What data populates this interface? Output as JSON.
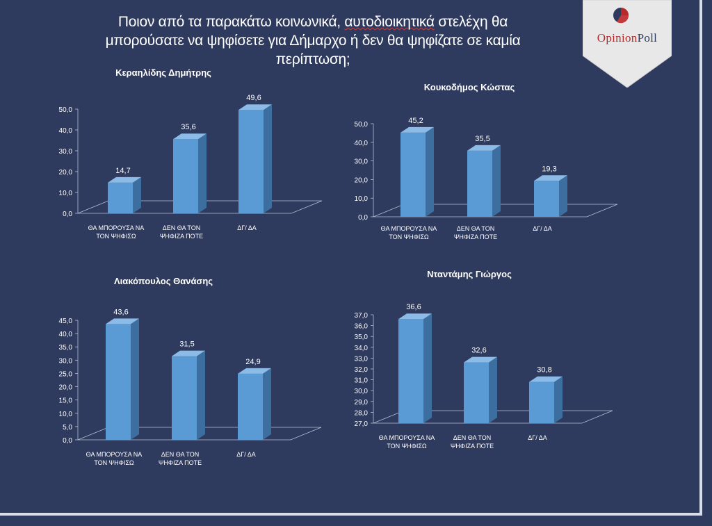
{
  "header": {
    "title_line1": "Ποιον από τα παρακάτω κοινωνικά, ",
    "title_underlined": "αυτοδιοικητικά",
    "title_line1_end": " στελέχη θα",
    "title_line2": "μπορούσατε να ψηφίσετε για Δήμαρχο ή δεν θα ψηφίζατε σε καμία",
    "title_line3": "περίπτωση;"
  },
  "logo": {
    "brand_left": "Opinion",
    "brand_right": "Poll",
    "colors": {
      "red": "#b82a2a",
      "navy": "#2f3b5e",
      "panel": "#e8e8e8"
    }
  },
  "colors": {
    "background": "#2f3b5e",
    "bar_front": "#5b9bd5",
    "bar_side": "#3c6f9f",
    "bar_top": "#8bbbe6"
  },
  "chart_data": [
    {
      "type": "bar",
      "title": "Κεραηλίδης Δημήτρης",
      "categories": [
        [
          "ΘΑ ΜΠΟΡΟΥΣΑ ΝΑ",
          "ΤΟΝ ΨΗΦΙΣΩ"
        ],
        [
          "ΔΕΝ ΘΑ ΤΟΝ",
          "ΨΗΦΙΖΑ ΠΟΤΕ"
        ],
        [
          "ΔΓ/ ΔΑ"
        ]
      ],
      "values": [
        14.7,
        35.6,
        49.6
      ],
      "value_labels": [
        "14,7",
        "35,6",
        "49,6"
      ],
      "ylim": [
        0,
        50
      ],
      "yticks": [
        "0,0",
        "10,0",
        "20,0",
        "30,0",
        "40,0",
        "50,0"
      ],
      "grid": false,
      "legend": "none"
    },
    {
      "type": "bar",
      "title": "Κουκοδήμος Κώστας",
      "categories": [
        [
          "ΘΑ ΜΠΟΡΟΥΣΑ ΝΑ",
          "ΤΟΝ ΨΗΦΙΣΩ"
        ],
        [
          "ΔΕΝ ΘΑ ΤΟΝ",
          "ΨΗΦΙΖΑ ΠΟΤΕ"
        ],
        [
          "ΔΓ/ ΔΑ"
        ]
      ],
      "values": [
        45.2,
        35.5,
        19.3
      ],
      "value_labels": [
        "45,2",
        "35,5",
        "19,3"
      ],
      "ylim": [
        0,
        50
      ],
      "yticks": [
        "0,0",
        "10,0",
        "20,0",
        "30,0",
        "40,0",
        "50,0"
      ],
      "grid": false,
      "legend": "none"
    },
    {
      "type": "bar",
      "title": "Λιακόπουλος Θανάσης",
      "categories": [
        [
          "ΘΑ ΜΠΟΡΟΥΣΑ ΝΑ",
          "ΤΟΝ ΨΗΦΙΣΩ"
        ],
        [
          "ΔΕΝ ΘΑ ΤΟΝ",
          "ΨΗΦΙΖΑ ΠΟΤΕ"
        ],
        [
          "ΔΓ/ ΔΑ"
        ]
      ],
      "values": [
        43.6,
        31.5,
        24.9
      ],
      "value_labels": [
        "43,6",
        "31,5",
        "24,9"
      ],
      "ylim": [
        0,
        45
      ],
      "yticks": [
        "0,0",
        "5,0",
        "10,0",
        "15,0",
        "20,0",
        "25,0",
        "30,0",
        "35,0",
        "40,0",
        "45,0"
      ],
      "grid": false,
      "legend": "none"
    },
    {
      "type": "bar",
      "title": "Νταντάμης Γιώργος",
      "categories": [
        [
          "ΘΑ ΜΠΟΡΟΥΣΑ ΝΑ",
          "ΤΟΝ ΨΗΦΙΣΩ"
        ],
        [
          "ΔΕΝ ΘΑ ΤΟΝ",
          "ΨΗΦΙΖΑ ΠΟΤΕ"
        ],
        [
          "ΔΓ/ ΔΑ"
        ]
      ],
      "values": [
        36.6,
        32.6,
        30.8
      ],
      "value_labels": [
        "36,6",
        "32,6",
        "30,8"
      ],
      "ylim": [
        27,
        37
      ],
      "yticks": [
        "27,0",
        "28,0",
        "29,0",
        "30,0",
        "31,0",
        "32,0",
        "33,0",
        "34,0",
        "35,0",
        "36,0",
        "37,0"
      ],
      "grid": false,
      "legend": "none"
    }
  ]
}
